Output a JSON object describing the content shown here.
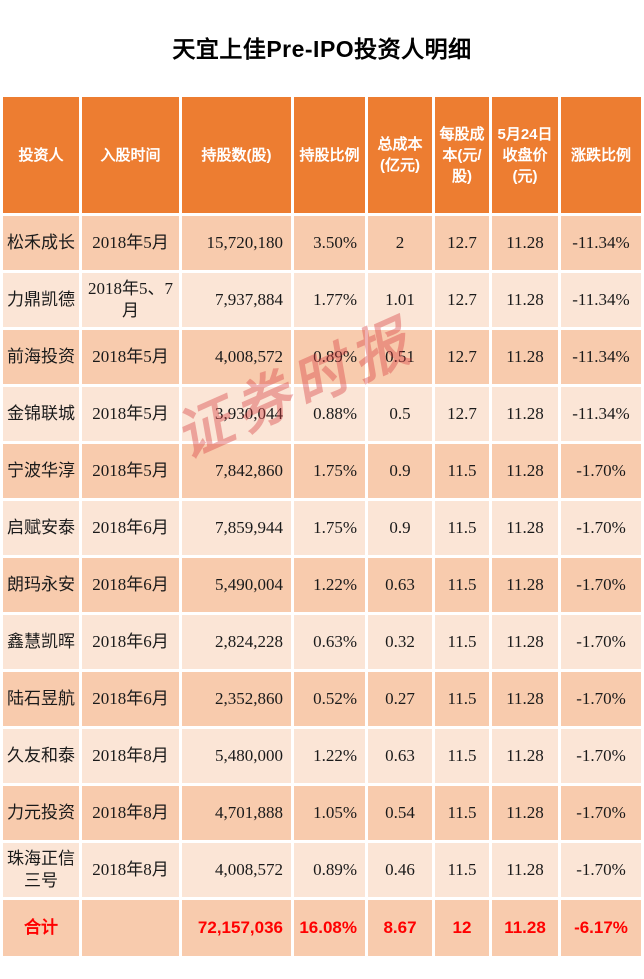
{
  "page": {
    "title": "天宜上佳Pre-IPO投资人明细"
  },
  "watermark": {
    "text": "证券时报"
  },
  "colors": {
    "header_bg": "#ED7D31",
    "row_dark": "#F8CBAD",
    "row_light": "#FBE5D6",
    "header_text": "#FFFFFF",
    "body_text": "#1A1A1A",
    "total_text": "#FF0000",
    "watermark_red": "#D63E40"
  },
  "table": {
    "columns": [
      {
        "key": "investor",
        "label": "投资人"
      },
      {
        "key": "time",
        "label": "入股时间"
      },
      {
        "key": "shares",
        "label": "持股数(股)"
      },
      {
        "key": "ratio",
        "label": "持股比例"
      },
      {
        "key": "cost",
        "label": "总成本(亿元)"
      },
      {
        "key": "per_share",
        "label": "每股成本(元/股)"
      },
      {
        "key": "close",
        "label": "5月24日收盘价(元)"
      },
      {
        "key": "change",
        "label": "涨跌比例"
      }
    ],
    "rows": [
      {
        "investor": "松禾成长",
        "time": "2018年5月",
        "shares": "15,720,180",
        "ratio": "3.50%",
        "cost": "2",
        "per_share": "12.7",
        "close": "11.28",
        "change": "-11.34%"
      },
      {
        "investor": "力鼎凯德",
        "time": "2018年5、7月",
        "shares": "7,937,884",
        "ratio": "1.77%",
        "cost": "1.01",
        "per_share": "12.7",
        "close": "11.28",
        "change": "-11.34%"
      },
      {
        "investor": "前海投资",
        "time": "2018年5月",
        "shares": "4,008,572",
        "ratio": "0.89%",
        "cost": "0.51",
        "per_share": "12.7",
        "close": "11.28",
        "change": "-11.34%"
      },
      {
        "investor": "金锦联城",
        "time": "2018年5月",
        "shares": "3,930,044",
        "ratio": "0.88%",
        "cost": "0.5",
        "per_share": "12.7",
        "close": "11.28",
        "change": "-11.34%"
      },
      {
        "investor": "宁波华淳",
        "time": "2018年5月",
        "shares": "7,842,860",
        "ratio": "1.75%",
        "cost": "0.9",
        "per_share": "11.5",
        "close": "11.28",
        "change": "-1.70%"
      },
      {
        "investor": "启赋安泰",
        "time": "2018年6月",
        "shares": "7,859,944",
        "ratio": "1.75%",
        "cost": "0.9",
        "per_share": "11.5",
        "close": "11.28",
        "change": "-1.70%"
      },
      {
        "investor": "朗玛永安",
        "time": "2018年6月",
        "shares": "5,490,004",
        "ratio": "1.22%",
        "cost": "0.63",
        "per_share": "11.5",
        "close": "11.28",
        "change": "-1.70%"
      },
      {
        "investor": "鑫慧凯晖",
        "time": "2018年6月",
        "shares": "2,824,228",
        "ratio": "0.63%",
        "cost": "0.32",
        "per_share": "11.5",
        "close": "11.28",
        "change": "-1.70%"
      },
      {
        "investor": "陆石昱航",
        "time": "2018年6月",
        "shares": "2,352,860",
        "ratio": "0.52%",
        "cost": "0.27",
        "per_share": "11.5",
        "close": "11.28",
        "change": "-1.70%"
      },
      {
        "investor": "久友和泰",
        "time": "2018年8月",
        "shares": "5,480,000",
        "ratio": "1.22%",
        "cost": "0.63",
        "per_share": "11.5",
        "close": "11.28",
        "change": "-1.70%"
      },
      {
        "investor": "力元投资",
        "time": "2018年8月",
        "shares": "4,701,888",
        "ratio": "1.05%",
        "cost": "0.54",
        "per_share": "11.5",
        "close": "11.28",
        "change": "-1.70%"
      },
      {
        "investor": "珠海正信三号",
        "time": "2018年8月",
        "shares": "4,008,572",
        "ratio": "0.89%",
        "cost": "0.46",
        "per_share": "11.5",
        "close": "11.28",
        "change": "-1.70%"
      }
    ],
    "total": {
      "investor": "合计",
      "time": "",
      "shares": "72,157,036",
      "ratio": "16.08%",
      "cost": "8.67",
      "per_share": "12",
      "close": "11.28",
      "change": "-6.17%"
    }
  },
  "chart_data": {
    "type": "table",
    "title": "天宜上佳Pre-IPO投资人明细",
    "columns": [
      "投资人",
      "入股时间",
      "持股数(股)",
      "持股比例",
      "总成本(亿元)",
      "每股成本(元/股)",
      "5月24日收盘价(元)",
      "涨跌比例"
    ],
    "rows": [
      [
        "松禾成长",
        "2018年5月",
        "15,720,180",
        "3.50%",
        "2",
        "12.7",
        "11.28",
        "-11.34%"
      ],
      [
        "力鼎凯德",
        "2018年5、7月",
        "7,937,884",
        "1.77%",
        "1.01",
        "12.7",
        "11.28",
        "-11.34%"
      ],
      [
        "前海投资",
        "2018年5月",
        "4,008,572",
        "0.89%",
        "0.51",
        "12.7",
        "11.28",
        "-11.34%"
      ],
      [
        "金锦联城",
        "2018年5月",
        "3,930,044",
        "0.88%",
        "0.5",
        "12.7",
        "11.28",
        "-11.34%"
      ],
      [
        "宁波华淳",
        "2018年5月",
        "7,842,860",
        "1.75%",
        "0.9",
        "11.5",
        "11.28",
        "-1.70%"
      ],
      [
        "启赋安泰",
        "2018年6月",
        "7,859,944",
        "1.75%",
        "0.9",
        "11.5",
        "11.28",
        "-1.70%"
      ],
      [
        "朗玛永安",
        "2018年6月",
        "5,490,004",
        "1.22%",
        "0.63",
        "11.5",
        "11.28",
        "-1.70%"
      ],
      [
        "鑫慧凯晖",
        "2018年6月",
        "2,824,228",
        "0.63%",
        "0.32",
        "11.5",
        "11.28",
        "-1.70%"
      ],
      [
        "陆石昱航",
        "2018年6月",
        "2,352,860",
        "0.52%",
        "0.27",
        "11.5",
        "11.28",
        "-1.70%"
      ],
      [
        "久友和泰",
        "2018年8月",
        "5,480,000",
        "1.22%",
        "0.63",
        "11.5",
        "11.28",
        "-1.70%"
      ],
      [
        "力元投资",
        "2018年8月",
        "4,701,888",
        "1.05%",
        "0.54",
        "11.5",
        "11.28",
        "-1.70%"
      ],
      [
        "珠海正信三号",
        "2018年8月",
        "4,008,572",
        "0.89%",
        "0.46",
        "11.5",
        "11.28",
        "-1.70%"
      ],
      [
        "合计",
        "",
        "72,157,036",
        "16.08%",
        "8.67",
        "12",
        "11.28",
        "-6.17%"
      ]
    ]
  }
}
